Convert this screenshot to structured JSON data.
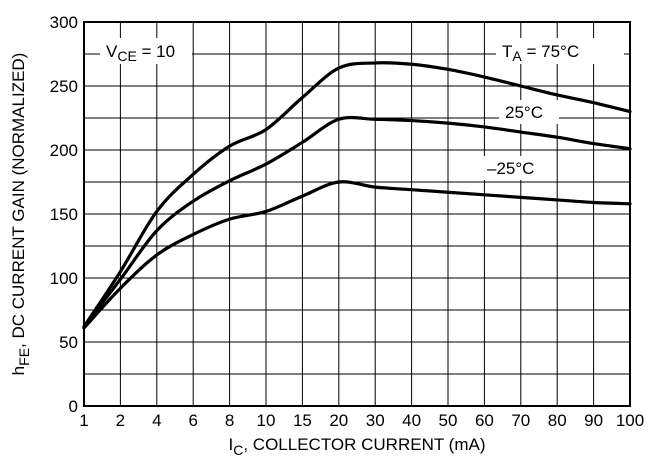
{
  "chart_data": {
    "type": "line",
    "title": "",
    "xlabel": {
      "main": "I",
      "sub": "C",
      "rest": ", COLLECTOR CURRENT (mA)"
    },
    "ylabel": {
      "main": "h",
      "sub": "FE",
      "rest": ", DC CURRENT GAIN (NORMALIZED)"
    },
    "x_ticks": [
      "1",
      "2",
      "4",
      "6",
      "8",
      "10",
      "15",
      "20",
      "30",
      "40",
      "50",
      "60",
      "70",
      "80",
      "90",
      "100"
    ],
    "ylim": [
      0,
      300
    ],
    "y_ticks": [
      "0",
      "50",
      "100",
      "150",
      "200",
      "250",
      "300"
    ],
    "grid": true,
    "conditions": {
      "main": "V",
      "sub": "CE",
      "rest": " = 10"
    },
    "series": [
      {
        "name": "T_A = 75°C",
        "label": {
          "main": "T",
          "sub": "A",
          "rest": " = 75°C"
        },
        "x": [
          "1",
          "2",
          "4",
          "6",
          "8",
          "10",
          "15",
          "20",
          "30",
          "40",
          "50",
          "60",
          "70",
          "80",
          "90",
          "100"
        ],
        "y": [
          62,
          105,
          152,
          181,
          203,
          216,
          241,
          264,
          268,
          267,
          263,
          257,
          250,
          243,
          237,
          230
        ]
      },
      {
        "name": "25°C",
        "label": {
          "main": "25°C",
          "sub": "",
          "rest": ""
        },
        "x": [
          "1",
          "2",
          "4",
          "6",
          "8",
          "10",
          "15",
          "20",
          "30",
          "40",
          "50",
          "60",
          "70",
          "80",
          "90",
          "100"
        ],
        "y": [
          62,
          99,
          137,
          160,
          176,
          189,
          206,
          224,
          224,
          223,
          221,
          218,
          214,
          210,
          205,
          201
        ]
      },
      {
        "name": "–25°C",
        "label": {
          "main": "–25°C",
          "sub": "",
          "rest": ""
        },
        "x": [
          "1",
          "2",
          "4",
          "6",
          "8",
          "10",
          "15",
          "20",
          "30",
          "40",
          "50",
          "60",
          "70",
          "80",
          "90",
          "100"
        ],
        "y": [
          61,
          92,
          118,
          134,
          146,
          152,
          164,
          175,
          171,
          169,
          167,
          165,
          163,
          161,
          159,
          158
        ]
      }
    ]
  }
}
